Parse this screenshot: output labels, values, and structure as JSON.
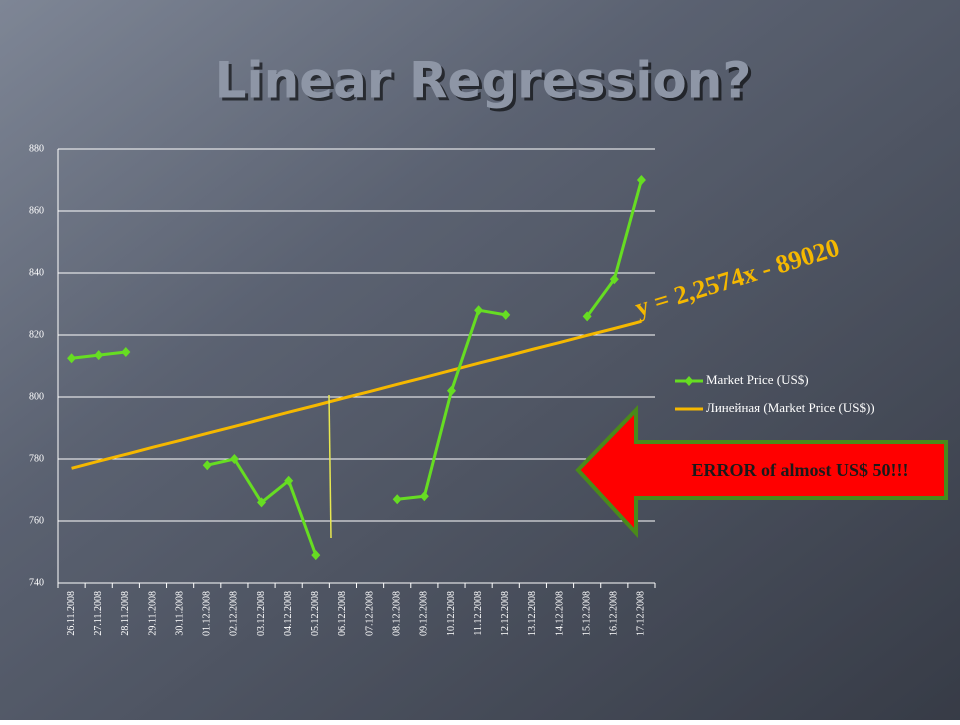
{
  "chart_data": {
    "type": "line",
    "title": "Linear Regression?",
    "categories": [
      "26.11.2008",
      "27.11.2008",
      "28.11.2008",
      "29.11.2008",
      "30.11.2008",
      "01.12.2008",
      "02.12.2008",
      "03.12.2008",
      "04.12.2008",
      "05.12.2008",
      "06.12.2008",
      "07.12.2008",
      "08.12.2008",
      "09.12.2008",
      "10.12.2008",
      "11.12.2008",
      "12.12.2008",
      "13.12.2008",
      "14.12.2008",
      "15.12.2008",
      "16.12.2008",
      "17.12.2008"
    ],
    "series": [
      {
        "name": "Market Price (US$)",
        "color": "#66dd22",
        "marker": "diamond",
        "values": [
          812.5,
          813.5,
          814.5,
          null,
          null,
          778,
          780,
          766,
          773,
          749,
          null,
          null,
          767,
          768,
          802,
          828,
          826.5,
          null,
          null,
          826,
          838,
          870
        ]
      },
      {
        "name": "Линейная (Market Price (US$))",
        "color": "#f5b800",
        "marker": "none",
        "values": [
          777.0,
          779.3,
          781.5,
          783.8,
          786.0,
          788.3,
          790.5,
          792.8,
          795.1,
          797.3,
          799.6,
          801.8,
          804.1,
          806.3,
          808.6,
          810.9,
          813.1,
          815.4,
          817.6,
          819.9,
          822.1,
          824.4
        ]
      }
    ],
    "ylim": [
      740,
      880
    ],
    "yticks": [
      740,
      760,
      780,
      800,
      820,
      840,
      860,
      880
    ],
    "grid": true,
    "legend": "right",
    "annotations": [
      "y = 2,2574x - 89020",
      "ERROR of almost US$ 50!!!"
    ]
  }
}
